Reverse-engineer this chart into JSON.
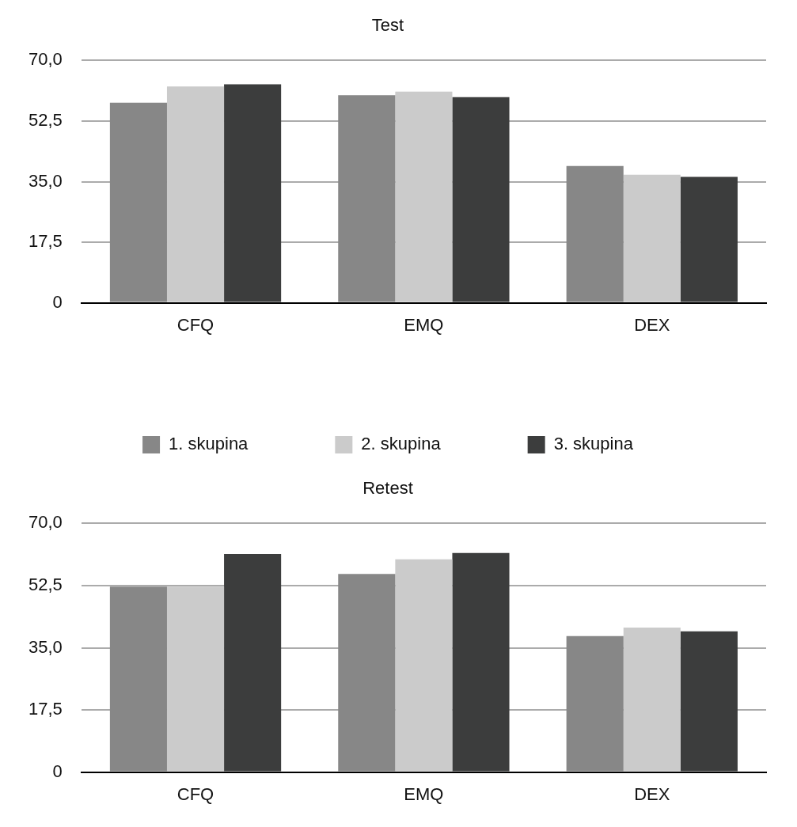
{
  "chart_data": [
    {
      "type": "bar",
      "title": "Test",
      "categories": [
        "CFQ",
        "EMQ",
        "DEX"
      ],
      "series": [
        {
          "name": "1. skupina",
          "color": "#878787",
          "values": [
            57.8,
            60.0,
            39.5
          ]
        },
        {
          "name": "2. skupina",
          "color": "#cbcbcb",
          "values": [
            62.5,
            61.0,
            37.0
          ]
        },
        {
          "name": "3. skupina",
          "color": "#3c3d3d",
          "values": [
            63.1,
            59.4,
            36.4
          ]
        }
      ],
      "ylim": [
        0,
        70
      ],
      "yticks": [
        0,
        {
          "value": 17.5,
          "label": "17,5"
        },
        {
          "value": 35,
          "label": "35,0"
        },
        {
          "value": 52.5,
          "label": "52,5"
        },
        {
          "value": 70,
          "label": "70,0"
        }
      ],
      "grid": "y",
      "legend": "bottom"
    },
    {
      "type": "bar",
      "title": "Retest",
      "categories": [
        "CFQ",
        "EMQ",
        "DEX"
      ],
      "series": [
        {
          "color": "#878787",
          "values": [
            52.2,
            55.8,
            38.3
          ]
        },
        {
          "color": "#cbcbcb",
          "values": [
            52.2,
            59.9,
            40.7
          ]
        },
        {
          "color": "#3c3d3d",
          "values": [
            61.4,
            61.7,
            39.6
          ]
        }
      ],
      "ylim": [
        0,
        70
      ],
      "yticks": [
        0,
        {
          "value": 17.5,
          "label": "17,5"
        },
        {
          "value": 35,
          "label": "35,0"
        },
        {
          "value": 52.5,
          "label": "52,5"
        },
        {
          "value": 70,
          "label": "70,0"
        }
      ],
      "grid": "y",
      "legend": false
    }
  ]
}
